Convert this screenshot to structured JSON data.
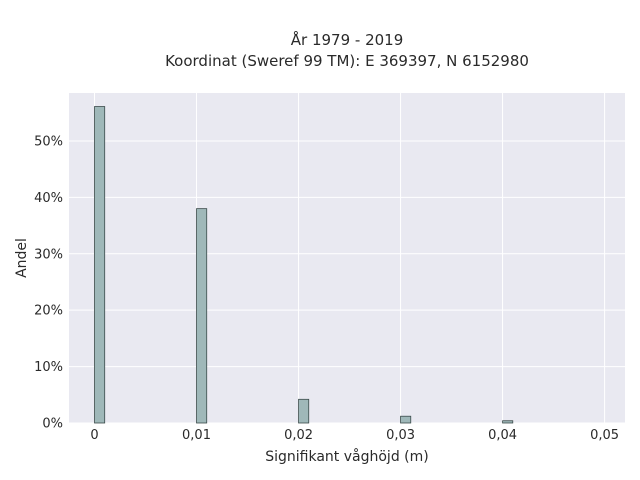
{
  "chart_data": {
    "type": "bar",
    "title": "År 1979 - 2019",
    "subtitle": "Koordinat (Sweref 99 TM): E 369397, N 6152980",
    "xlabel": "Signifikant våghöjd (m)",
    "ylabel": "Andel",
    "x_ticks": [
      "0",
      "0,01",
      "0,02",
      "0,03",
      "0,04",
      "0,05"
    ],
    "x_tick_values": [
      0,
      0.01,
      0.02,
      0.03,
      0.04,
      0.05
    ],
    "y_ticks": [
      "0%",
      "10%",
      "20%",
      "30%",
      "40%",
      "50%"
    ],
    "y_tick_values": [
      0,
      10,
      20,
      30,
      40,
      50
    ],
    "xlim": [
      -0.0025,
      0.052
    ],
    "ylim": [
      0,
      58.5
    ],
    "bin_width": 0.001,
    "bins": [
      {
        "x": 0.0,
        "value": 56.1
      },
      {
        "x": 0.01,
        "value": 38.0
      },
      {
        "x": 0.02,
        "value": 4.2
      },
      {
        "x": 0.03,
        "value": 1.2
      },
      {
        "x": 0.04,
        "value": 0.4
      }
    ],
    "grid": true,
    "colors": {
      "bar_fill": "#9fb8b9",
      "bar_stroke": "#3a4a4a",
      "plot_bg": "#e9e9f1",
      "grid": "#ffffff"
    }
  }
}
